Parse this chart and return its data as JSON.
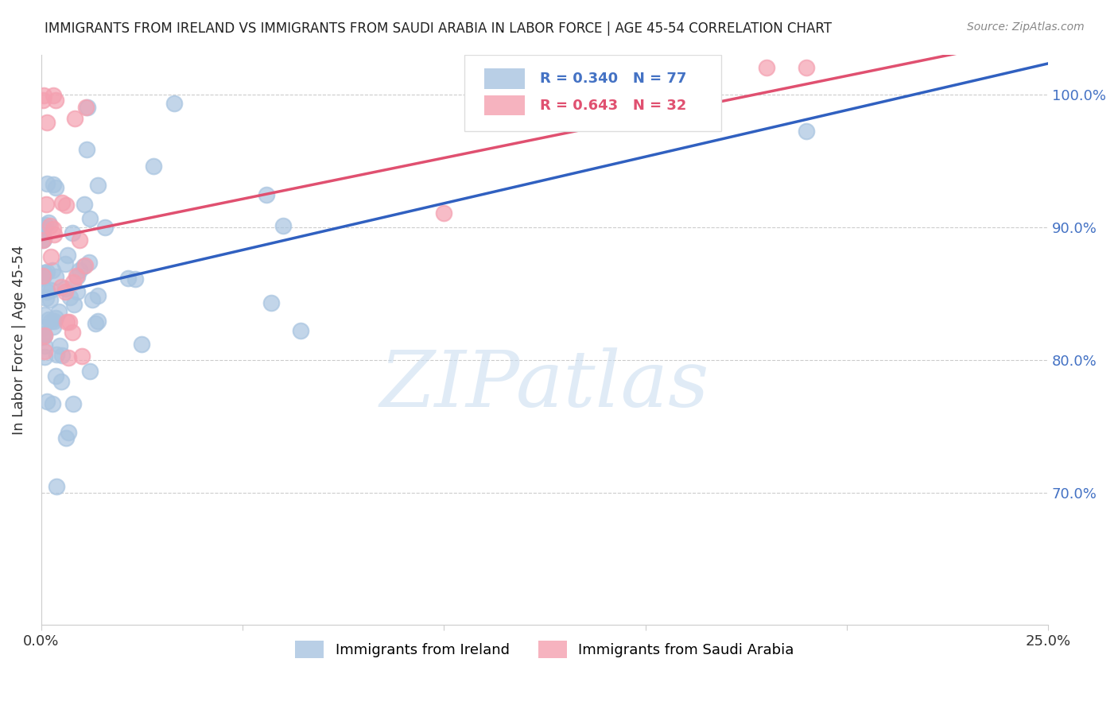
{
  "title": "IMMIGRANTS FROM IRELAND VS IMMIGRANTS FROM SAUDI ARABIA IN LABOR FORCE | AGE 45-54 CORRELATION CHART",
  "source": "Source: ZipAtlas.com",
  "ylabel": "In Labor Force | Age 45-54",
  "xlim": [
    0.0,
    0.25
  ],
  "ylim": [
    0.6,
    1.03
  ],
  "ireland_R": 0.34,
  "ireland_N": 77,
  "saudi_R": 0.643,
  "saudi_N": 32,
  "ireland_color": "#a8c4e0",
  "saudi_color": "#f4a0b0",
  "ireland_line_color": "#3060c0",
  "saudi_line_color": "#e05070",
  "ytick_vals": [
    0.7,
    0.8,
    0.9,
    1.0
  ],
  "ytick_labels": [
    "70.0%",
    "80.0%",
    "90.0%",
    "100.0%"
  ]
}
